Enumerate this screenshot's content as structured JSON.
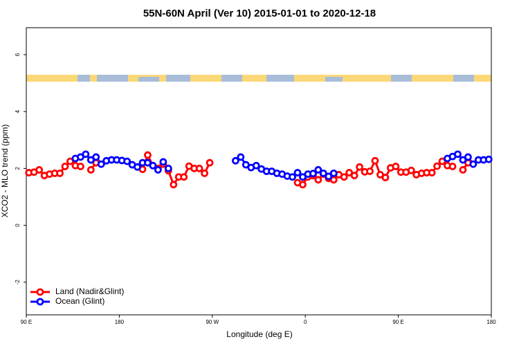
{
  "chart_data": {
    "type": "line",
    "title": "55N-60N April (Ver 10)   2015-01-01 to 2020-12-18",
    "xlabel": "Longitude (deg E)",
    "ylabel": "XCO2 - MLO trend (ppm)",
    "xlim": [
      90,
      540
    ],
    "ylim": [
      -3.15,
      6.95
    ],
    "xticks": [
      {
        "value": 90,
        "label": "90 E"
      },
      {
        "value": 180,
        "label": "180"
      },
      {
        "value": 270,
        "label": "90 W"
      },
      {
        "value": 360,
        "label": "0"
      },
      {
        "value": 450,
        "label": "90 E"
      },
      {
        "value": 540,
        "label": "180"
      }
    ],
    "yticks": [
      -2,
      0,
      2,
      4,
      6
    ],
    "legend": "bottom-left",
    "x": [
      92.5,
      97.5,
      102.5,
      107.5,
      112.5,
      117.5,
      122.5,
      127.5,
      132.5,
      137.5,
      142.5,
      147.5,
      152.5,
      157.5,
      162.5,
      167.5,
      172.5,
      177.5,
      182.5,
      187.5,
      192.5,
      197.5,
      202.5,
      207.5,
      212.5,
      217.5,
      222.5,
      227.5,
      232.5,
      237.5,
      242.5,
      247.5,
      252.5,
      257.5,
      262.5,
      267.5,
      272.5,
      277.5,
      282.5,
      287.5,
      292.5,
      297.5,
      302.5,
      307.5,
      312.5,
      317.5,
      322.5,
      327.5,
      332.5,
      337.5,
      342.5,
      347.5,
      352.5,
      357.5,
      362.5,
      367.5,
      372.5,
      377.5,
      382.5,
      387.5,
      392.5,
      397.5,
      402.5,
      407.5,
      412.5,
      417.5,
      422.5,
      427.5,
      432.5,
      437.5,
      442.5,
      447.5,
      452.5,
      457.5,
      462.5,
      467.5,
      472.5,
      477.5,
      482.5,
      487.5,
      492.5,
      497.5,
      502.5,
      507.5,
      512.5,
      517.5,
      522.5,
      527.5,
      532.5,
      537.5
    ],
    "series": [
      {
        "name": "Land (Nadir&Glint)",
        "color": "#ff0000",
        "values": [
          1.85,
          1.87,
          1.95,
          1.75,
          1.8,
          1.83,
          1.83,
          2.07,
          2.25,
          2.1,
          2.07,
          null,
          1.95,
          2.2,
          null,
          null,
          null,
          null,
          null,
          null,
          null,
          null,
          1.97,
          2.47,
          2.1,
          2.0,
          2.15,
          1.92,
          1.43,
          1.7,
          1.7,
          2.08,
          2.0,
          2.0,
          1.83,
          2.2,
          null,
          null,
          null,
          null,
          null,
          null,
          null,
          null,
          null,
          null,
          null,
          null,
          null,
          null,
          null,
          null,
          1.5,
          1.43,
          1.7,
          1.75,
          1.6,
          1.8,
          1.65,
          1.6,
          1.78,
          1.7,
          1.85,
          1.75,
          2.05,
          1.88,
          1.9,
          2.27,
          1.78,
          1.68,
          2.02,
          2.07,
          1.87,
          1.87,
          1.93,
          1.78,
          1.83,
          1.85,
          1.85,
          2.08,
          2.25,
          2.1,
          2.07,
          null,
          1.95,
          2.2,
          null,
          null,
          null,
          null
        ]
      },
      {
        "name": "Ocean (Glint)",
        "color": "#0000ff",
        "values": [
          null,
          null,
          null,
          null,
          null,
          null,
          null,
          null,
          null,
          2.35,
          2.4,
          2.5,
          2.3,
          2.4,
          2.15,
          2.27,
          2.3,
          2.3,
          2.28,
          2.25,
          2.13,
          2.05,
          2.2,
          2.2,
          2.1,
          1.95,
          2.23,
          2.0,
          null,
          null,
          null,
          null,
          null,
          null,
          null,
          null,
          null,
          null,
          null,
          null,
          2.27,
          2.4,
          2.13,
          2.03,
          2.1,
          1.98,
          1.9,
          1.9,
          1.83,
          1.8,
          1.73,
          1.7,
          1.85,
          1.7,
          1.8,
          1.82,
          1.95,
          1.83,
          1.72,
          1.83,
          null,
          null,
          null,
          null,
          null,
          null,
          null,
          null,
          null,
          null,
          null,
          null,
          null,
          null,
          null,
          null,
          null,
          null,
          null,
          null,
          null,
          2.35,
          2.42,
          2.5,
          2.3,
          2.4,
          2.15,
          2.3,
          2.3,
          2.32
        ]
      }
    ]
  }
}
